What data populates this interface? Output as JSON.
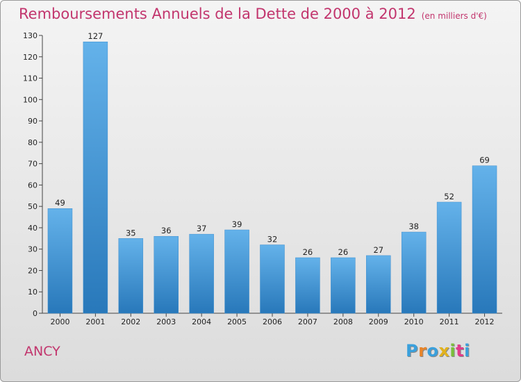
{
  "title": "Remboursements Annuels de la Dette de 2000 à 2012",
  "subtitle": "(en milliers d'€)",
  "commune": "ANCY",
  "logo": {
    "letters": [
      "P",
      "r",
      "o",
      "x",
      "i",
      "t",
      "i"
    ],
    "colors": [
      "#3aa0dc",
      "#e8852a",
      "#3aa0dc",
      "#e2b21d",
      "#7bbf3a",
      "#e23b8a",
      "#3aa0dc"
    ]
  },
  "colors": {
    "bar_top": "#64b2ea",
    "bar_bottom": "#2878ba",
    "title": "#c2356d",
    "grid": "#cfcfcf"
  },
  "chart_data": {
    "type": "bar",
    "categories": [
      "2000",
      "2001",
      "2002",
      "2003",
      "2004",
      "2005",
      "2006",
      "2007",
      "2008",
      "2009",
      "2010",
      "2011",
      "2012"
    ],
    "values": [
      49,
      127,
      35,
      36,
      37,
      39,
      32,
      26,
      26,
      27,
      38,
      52,
      69
    ],
    "ylim": [
      0,
      130
    ],
    "yticks": [
      0,
      10,
      20,
      30,
      40,
      50,
      60,
      70,
      80,
      90,
      100,
      110,
      120,
      130
    ],
    "grid": false,
    "data_labels": true
  }
}
